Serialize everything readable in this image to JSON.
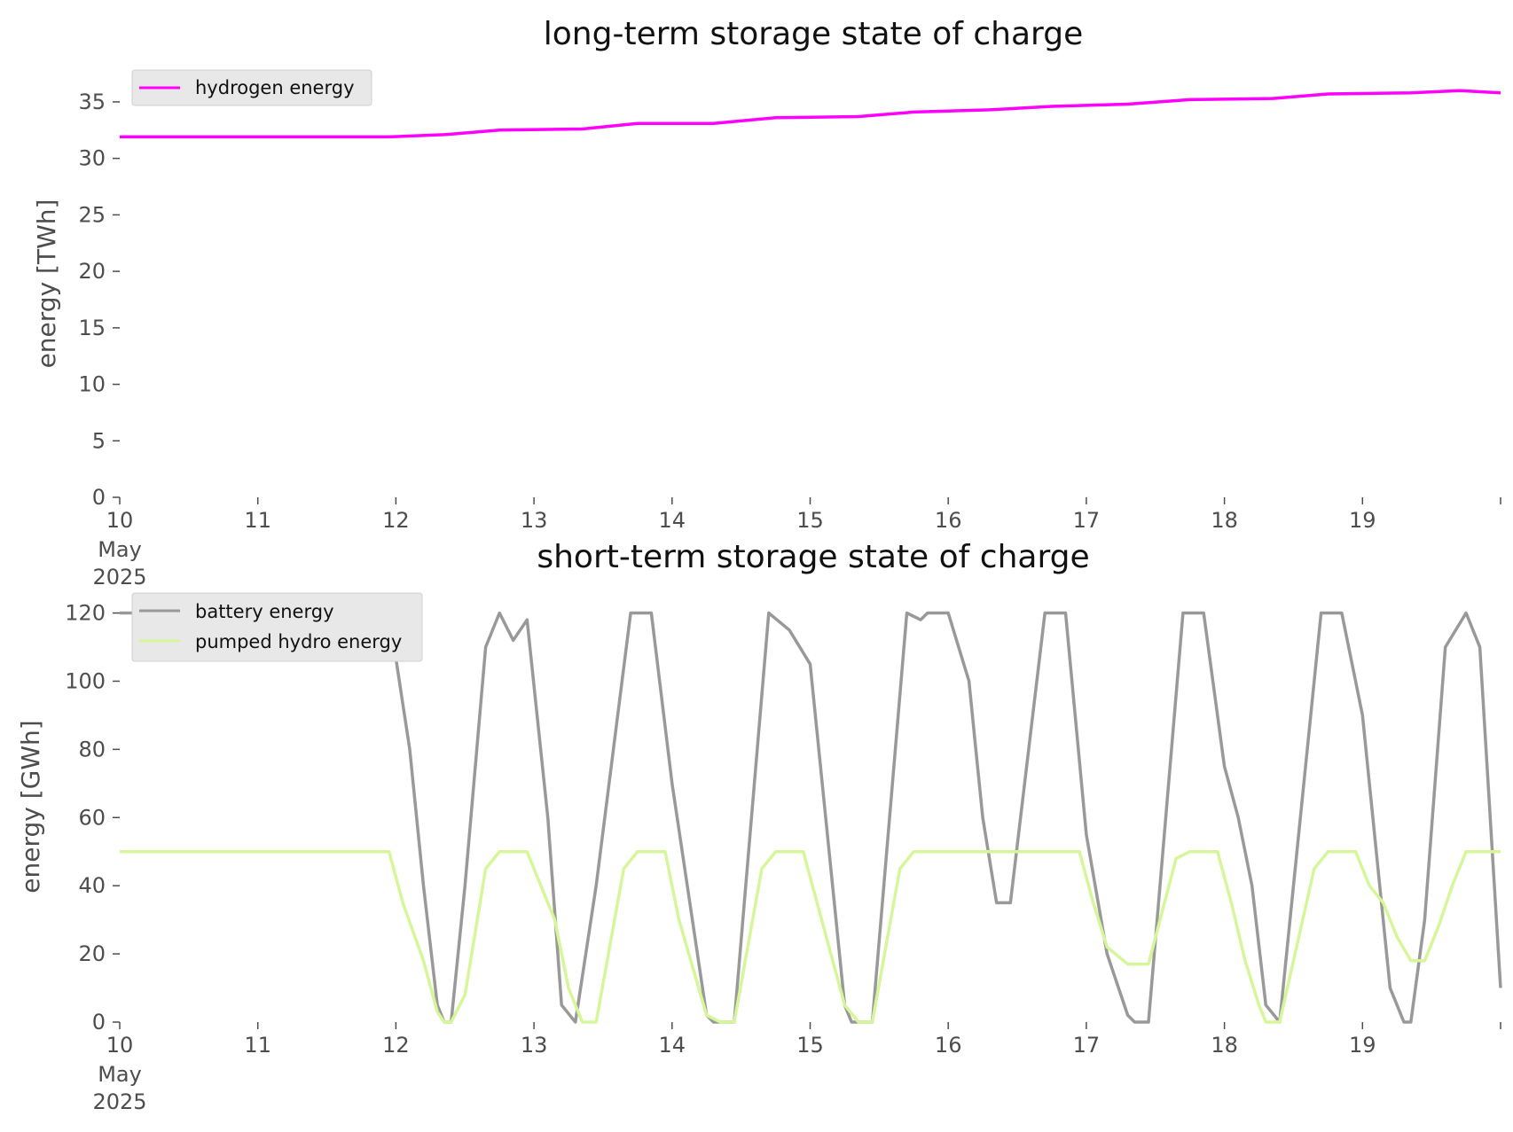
{
  "chart_data": [
    {
      "type": "line",
      "title": "long-term storage state of charge",
      "ylabel": "energy [TWh]",
      "xlabel": "",
      "xlim": [
        "2025-05-10",
        "2025-05-20"
      ],
      "ylim": [
        0,
        36.8
      ],
      "x_tick_labels": [
        "10",
        "11",
        "12",
        "13",
        "14",
        "15",
        "16",
        "17",
        "18",
        "19"
      ],
      "x_tick_sublabels": [
        "May",
        "2025"
      ],
      "y_ticks": [
        0,
        5,
        10,
        15,
        20,
        25,
        30,
        35
      ],
      "grid": false,
      "legend": "top-left",
      "series": [
        {
          "name": "hydrogen energy",
          "color": "#ff00ff",
          "x_days": [
            0,
            1,
            1.95,
            2.35,
            2.75,
            3.35,
            3.75,
            4.3,
            4.75,
            5.35,
            5.75,
            6.3,
            6.75,
            7.3,
            7.75,
            8.35,
            8.75,
            9.35,
            9.7,
            10
          ],
          "values": [
            31.9,
            31.9,
            31.9,
            32.1,
            32.5,
            32.6,
            33.1,
            33.1,
            33.6,
            33.7,
            34.1,
            34.3,
            34.6,
            34.8,
            35.2,
            35.3,
            35.7,
            35.8,
            36.0,
            35.8
          ]
        }
      ]
    },
    {
      "type": "line",
      "title": "short-term storage state of charge",
      "ylabel": "energy [GWh]",
      "xlabel": "",
      "xlim": [
        "2025-05-10",
        "2025-05-20"
      ],
      "ylim": [
        0,
        123
      ],
      "x_tick_labels": [
        "10",
        "11",
        "12",
        "13",
        "14",
        "15",
        "16",
        "17",
        "18",
        "19"
      ],
      "x_tick_sublabels": [
        "May",
        "2025"
      ],
      "y_ticks": [
        0,
        20,
        40,
        60,
        80,
        100,
        120
      ],
      "grid": false,
      "legend": "top-left",
      "series": [
        {
          "name": "battery energy",
          "color": "#999999",
          "x_days": [
            0,
            1.95,
            2.1,
            2.2,
            2.3,
            2.35,
            2.4,
            2.5,
            2.65,
            2.75,
            2.85,
            2.95,
            3.1,
            3.2,
            3.3,
            3.45,
            3.7,
            3.85,
            4.0,
            4.25,
            4.3,
            4.45,
            4.7,
            4.85,
            5.0,
            5.25,
            5.3,
            5.45,
            5.7,
            5.8,
            5.85,
            6.0,
            6.15,
            6.2,
            6.25,
            6.35,
            6.45,
            6.7,
            6.85,
            7.0,
            7.15,
            7.3,
            7.35,
            7.45,
            7.7,
            7.85,
            8.0,
            8.1,
            8.2,
            8.3,
            8.4,
            8.7,
            8.85,
            9.0,
            9.2,
            9.3,
            9.35,
            9.45,
            9.6,
            9.75,
            9.85,
            10.0
          ],
          "values": [
            120,
            120,
            80,
            40,
            5,
            0,
            0,
            40,
            110,
            120,
            112,
            118,
            60,
            5,
            0,
            40,
            120,
            120,
            70,
            2,
            0,
            0,
            120,
            115,
            105,
            5,
            0,
            0,
            120,
            118,
            120,
            120,
            100,
            80,
            60,
            35,
            35,
            120,
            120,
            55,
            20,
            2,
            0,
            0,
            120,
            120,
            75,
            60,
            40,
            5,
            0,
            120,
            120,
            90,
            10,
            0,
            0,
            30,
            110,
            120,
            110,
            10
          ]
        },
        {
          "name": "pumped hydro energy",
          "color": "#d5f79a",
          "x_days": [
            0,
            1.95,
            2.05,
            2.2,
            2.3,
            2.35,
            2.4,
            2.5,
            2.65,
            2.75,
            2.95,
            3.05,
            3.15,
            3.25,
            3.35,
            3.45,
            3.65,
            3.75,
            3.95,
            4.05,
            4.25,
            4.35,
            4.45,
            4.65,
            4.75,
            4.95,
            5.05,
            5.25,
            5.35,
            5.45,
            5.65,
            5.75,
            6.0,
            6.5,
            6.75,
            6.95,
            7.05,
            7.15,
            7.3,
            7.45,
            7.65,
            7.75,
            7.95,
            8.05,
            8.15,
            8.25,
            8.3,
            8.4,
            8.65,
            8.75,
            8.95,
            9.05,
            9.15,
            9.25,
            9.35,
            9.45,
            9.55,
            9.65,
            9.75,
            9.85,
            10.0
          ],
          "values": [
            50,
            50,
            35,
            18,
            3,
            0,
            0,
            8,
            45,
            50,
            50,
            40,
            30,
            10,
            0,
            0,
            45,
            50,
            50,
            30,
            2,
            0,
            0,
            45,
            50,
            50,
            35,
            5,
            0,
            0,
            45,
            50,
            50,
            50,
            50,
            50,
            35,
            22,
            17,
            17,
            48,
            50,
            50,
            35,
            18,
            5,
            0,
            0,
            45,
            50,
            50,
            40,
            35,
            25,
            18,
            18,
            28,
            40,
            50,
            50,
            50
          ]
        }
      ]
    }
  ]
}
